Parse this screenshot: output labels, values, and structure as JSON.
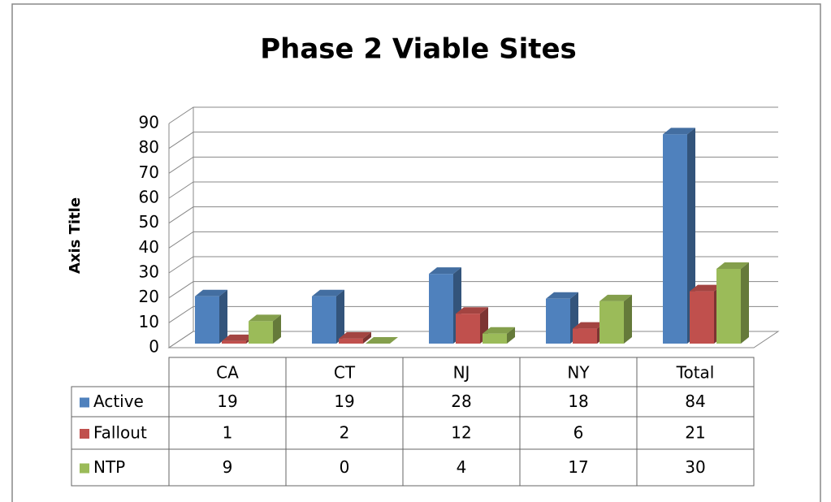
{
  "chart_data": {
    "type": "bar3d",
    "title": "Phase 2 Viable Sites",
    "y_label": "Axis Title",
    "categories": [
      "CA",
      "CT",
      "NJ",
      "NY",
      "Total"
    ],
    "series": [
      {
        "name": "Active",
        "color": "#4f81bd",
        "values": [
          19,
          19,
          28,
          18,
          84
        ]
      },
      {
        "name": "Fallout",
        "color": "#c0504d",
        "values": [
          1,
          2,
          12,
          6,
          21
        ]
      },
      {
        "name": "NTP",
        "color": "#9bbb59",
        "values": [
          9,
          0,
          4,
          17,
          30
        ]
      }
    ],
    "ylim": [
      0,
      90
    ],
    "yticks": [
      0,
      10,
      20,
      30,
      40,
      50,
      60,
      70,
      80,
      90
    ],
    "grid": true
  }
}
